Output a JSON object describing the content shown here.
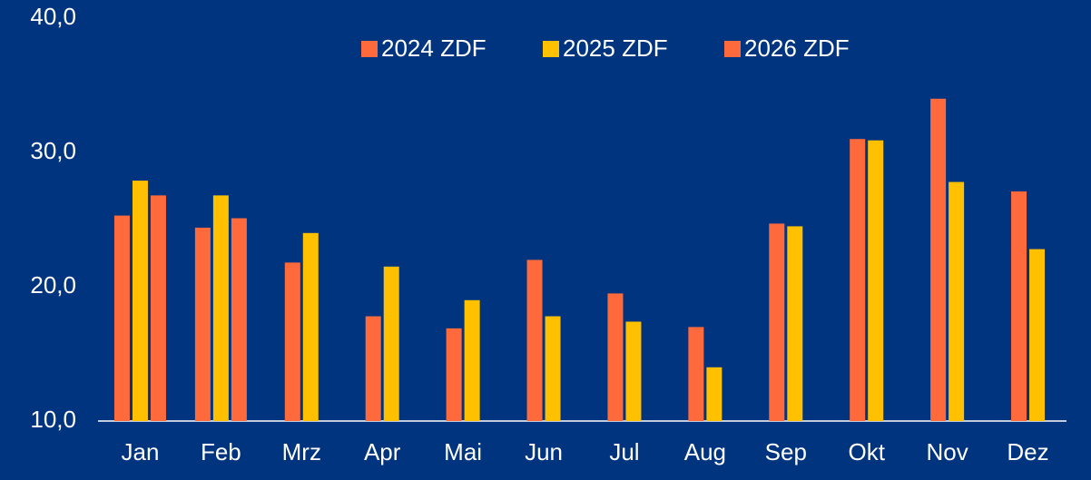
{
  "chart_data": {
    "type": "bar",
    "categories": [
      "Jan",
      "Feb",
      "Mrz",
      "Apr",
      "Mai",
      "Jun",
      "Jul",
      "Aug",
      "Sep",
      "Okt",
      "Nov",
      "Dez"
    ],
    "series": [
      {
        "name": "2024 ZDF",
        "color": "#ff6a3d",
        "values": [
          25.3,
          24.4,
          21.8,
          17.8,
          16.9,
          22.0,
          19.5,
          17.0,
          24.7,
          31.0,
          34.0,
          27.1
        ]
      },
      {
        "name": "2025 ZDF",
        "color": "#ffc000",
        "values": [
          27.9,
          26.8,
          24.0,
          21.5,
          19.0,
          17.8,
          17.4,
          14.0,
          24.5,
          30.9,
          27.8,
          22.8
        ]
      },
      {
        "name": "2026 ZDF",
        "color": "#ff6a3d",
        "values": [
          26.8,
          25.1,
          null,
          null,
          null,
          null,
          null,
          null,
          null,
          null,
          null,
          null
        ]
      }
    ],
    "ylim": [
      10,
      40
    ],
    "yticks": [
      {
        "value": 10,
        "label": "10,0"
      },
      {
        "value": 20,
        "label": "20,0"
      },
      {
        "value": 30,
        "label": "30,0"
      },
      {
        "value": 40,
        "label": "40,0"
      }
    ],
    "grid": false,
    "legend": "top"
  }
}
